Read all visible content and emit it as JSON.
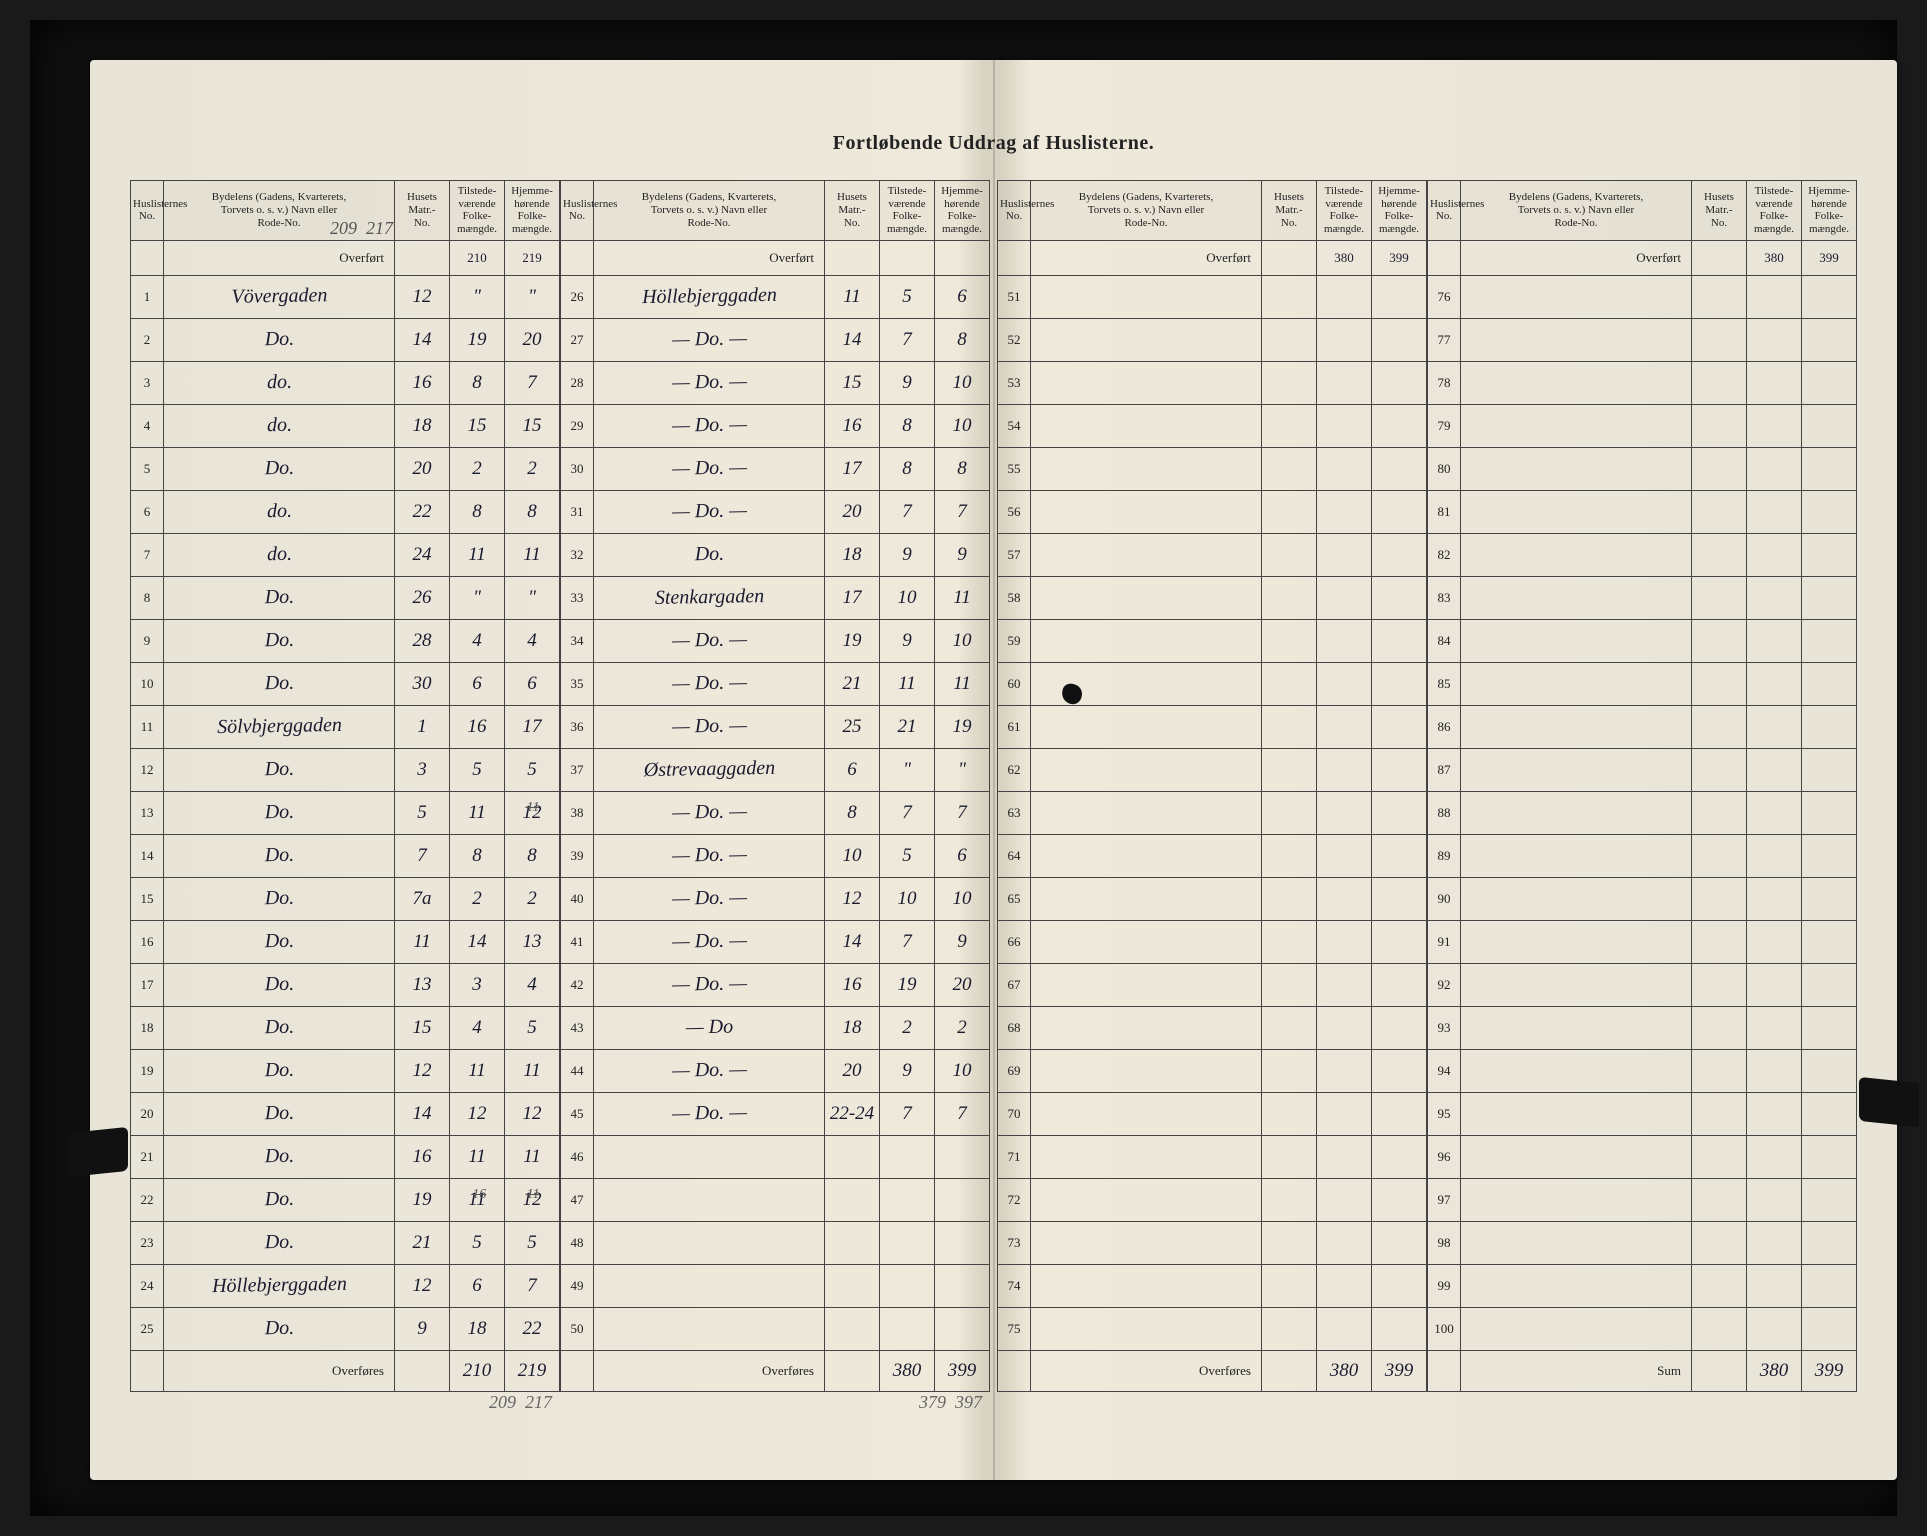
{
  "title": "Fortløbende Uddrag af Huslisterne.",
  "headers": {
    "no": "Huslisternes\nNo.",
    "name": "Bydelens (Gadens, Kvarterets,\nTorvets o. s. v.) Navn eller\nRode-No.",
    "matr": "Husets\nMatr.-\nNo.",
    "pop1": "Tilstede-\nværende\nFolke-\nmængde.",
    "pop2": "Hjemme-\nhørende\nFolke-\nmængde.",
    "overfort": "Overført",
    "overfores": "Overføres",
    "sum": "Sum"
  },
  "blocks": [
    {
      "carry_in": [
        "",
        "210",
        "219"
      ],
      "rows": [
        {
          "n": "1",
          "name": "Vövergaden",
          "m": "12",
          "a": "\"",
          "b": "\""
        },
        {
          "n": "2",
          "name": "Do.",
          "m": "14",
          "a": "19",
          "b": "20"
        },
        {
          "n": "3",
          "name": "do.",
          "m": "16",
          "a": "8",
          "b": "7"
        },
        {
          "n": "4",
          "name": "do.",
          "m": "18",
          "a": "15",
          "b": "15"
        },
        {
          "n": "5",
          "name": "Do.",
          "m": "20",
          "a": "2",
          "b": "2"
        },
        {
          "n": "6",
          "name": "do.",
          "m": "22",
          "a": "8",
          "b": "8"
        },
        {
          "n": "7",
          "name": "do.",
          "m": "24",
          "a": "11",
          "b": "11"
        },
        {
          "n": "8",
          "name": "Do.",
          "m": "26",
          "a": "\"",
          "b": "\""
        },
        {
          "n": "9",
          "name": "Do.",
          "m": "28",
          "a": "4",
          "b": "4"
        },
        {
          "n": "10",
          "name": "Do.",
          "m": "30",
          "a": "6",
          "b": "6"
        },
        {
          "n": "11",
          "name": "Sölvbjerggaden",
          "m": "1",
          "a": "16",
          "b": "17"
        },
        {
          "n": "12",
          "name": "Do.",
          "m": "3",
          "a": "5",
          "b": "5"
        },
        {
          "n": "13",
          "name": "Do.",
          "m": "5",
          "a": "11",
          "b": "12",
          "b_old": "11"
        },
        {
          "n": "14",
          "name": "Do.",
          "m": "7",
          "a": "8",
          "b": "8"
        },
        {
          "n": "15",
          "name": "Do.",
          "m": "7a",
          "a": "2",
          "b": "2"
        },
        {
          "n": "16",
          "name": "Do.",
          "m": "11",
          "a": "14",
          "b": "13"
        },
        {
          "n": "17",
          "name": "Do.",
          "m": "13",
          "a": "3",
          "b": "4"
        },
        {
          "n": "18",
          "name": "Do.",
          "m": "15",
          "a": "4",
          "b": "5"
        },
        {
          "n": "19",
          "name": "Do.",
          "m": "12",
          "a": "11",
          "b": "11"
        },
        {
          "n": "20",
          "name": "Do.",
          "m": "14",
          "a": "12",
          "b": "12"
        },
        {
          "n": "21",
          "name": "Do.",
          "m": "16",
          "a": "11",
          "b": "11"
        },
        {
          "n": "22",
          "name": "Do.",
          "m": "19",
          "a": "11",
          "b": "12",
          "a_old": "16",
          "b_old": "11"
        },
        {
          "n": "23",
          "name": "Do.",
          "m": "21",
          "a": "5",
          "b": "5"
        },
        {
          "n": "24",
          "name": "Höllebjerggaden",
          "m": "12",
          "a": "6",
          "b": "7"
        },
        {
          "n": "25",
          "name": "Do.",
          "m": "9",
          "a": "18",
          "b": "22"
        }
      ],
      "carry_out": [
        "210",
        "219"
      ],
      "carry_out_below": [
        "209",
        "217"
      ]
    },
    {
      "carry_in": [
        "",
        "",
        ""
      ],
      "rows": [
        {
          "n": "26",
          "name": "Höllebjerggaden",
          "m": "11",
          "a": "5",
          "b": "6"
        },
        {
          "n": "27",
          "name": "— Do. —",
          "m": "14",
          "a": "7",
          "b": "8"
        },
        {
          "n": "28",
          "name": "— Do. —",
          "m": "15",
          "a": "9",
          "b": "10"
        },
        {
          "n": "29",
          "name": "— Do. —",
          "m": "16",
          "a": "8",
          "b": "10"
        },
        {
          "n": "30",
          "name": "— Do. —",
          "m": "17",
          "a": "8",
          "b": "8"
        },
        {
          "n": "31",
          "name": "— Do. —",
          "m": "20",
          "a": "7",
          "b": "7"
        },
        {
          "n": "32",
          "name": "Do.",
          "m": "18",
          "a": "9",
          "b": "9"
        },
        {
          "n": "33",
          "name": "Stenkargaden",
          "m": "17",
          "a": "10",
          "b": "11"
        },
        {
          "n": "34",
          "name": "— Do. —",
          "m": "19",
          "a": "9",
          "b": "10"
        },
        {
          "n": "35",
          "name": "— Do. —",
          "m": "21",
          "a": "11",
          "b": "11"
        },
        {
          "n": "36",
          "name": "— Do. —",
          "m": "25",
          "a": "21",
          "b": "19"
        },
        {
          "n": "37",
          "name": "Østrevaaggaden",
          "m": "6",
          "a": "\"",
          "b": "\""
        },
        {
          "n": "38",
          "name": "— Do. —",
          "m": "8",
          "a": "7",
          "b": "7"
        },
        {
          "n": "39",
          "name": "— Do. —",
          "m": "10",
          "a": "5",
          "b": "6"
        },
        {
          "n": "40",
          "name": "— Do. —",
          "m": "12",
          "a": "10",
          "b": "10"
        },
        {
          "n": "41",
          "name": "— Do. —",
          "m": "14",
          "a": "7",
          "b": "9"
        },
        {
          "n": "42",
          "name": "— Do. —",
          "m": "16",
          "a": "19",
          "b": "20"
        },
        {
          "n": "43",
          "name": "— Do",
          "m": "18",
          "a": "2",
          "b": "2"
        },
        {
          "n": "44",
          "name": "— Do. —",
          "m": "20",
          "a": "9",
          "b": "10"
        },
        {
          "n": "45",
          "name": "— Do. —",
          "m": "22-24",
          "a": "7",
          "b": "7"
        },
        {
          "n": "46",
          "name": "",
          "m": "",
          "a": "",
          "b": ""
        },
        {
          "n": "47",
          "name": "",
          "m": "",
          "a": "",
          "b": ""
        },
        {
          "n": "48",
          "name": "",
          "m": "",
          "a": "",
          "b": ""
        },
        {
          "n": "49",
          "name": "",
          "m": "",
          "a": "",
          "b": ""
        },
        {
          "n": "50",
          "name": "",
          "m": "",
          "a": "",
          "b": ""
        }
      ],
      "carry_out": [
        "380",
        "399"
      ],
      "carry_out_below": [
        "379",
        "397"
      ]
    },
    {
      "carry_in": [
        "",
        "380",
        "399"
      ],
      "rows": [
        {
          "n": "51"
        },
        {
          "n": "52"
        },
        {
          "n": "53"
        },
        {
          "n": "54"
        },
        {
          "n": "55"
        },
        {
          "n": "56"
        },
        {
          "n": "57"
        },
        {
          "n": "58"
        },
        {
          "n": "59"
        },
        {
          "n": "60"
        },
        {
          "n": "61"
        },
        {
          "n": "62"
        },
        {
          "n": "63"
        },
        {
          "n": "64"
        },
        {
          "n": "65"
        },
        {
          "n": "66"
        },
        {
          "n": "67"
        },
        {
          "n": "68"
        },
        {
          "n": "69"
        },
        {
          "n": "70"
        },
        {
          "n": "71"
        },
        {
          "n": "72"
        },
        {
          "n": "73"
        },
        {
          "n": "74"
        },
        {
          "n": "75"
        }
      ],
      "carry_out": [
        "380",
        "399"
      ]
    },
    {
      "carry_in": [
        "",
        "380",
        "399"
      ],
      "rows": [
        {
          "n": "76"
        },
        {
          "n": "77"
        },
        {
          "n": "78"
        },
        {
          "n": "79"
        },
        {
          "n": "80"
        },
        {
          "n": "81"
        },
        {
          "n": "82"
        },
        {
          "n": "83"
        },
        {
          "n": "84"
        },
        {
          "n": "85"
        },
        {
          "n": "86"
        },
        {
          "n": "87"
        },
        {
          "n": "88"
        },
        {
          "n": "89"
        },
        {
          "n": "90"
        },
        {
          "n": "91"
        },
        {
          "n": "92"
        },
        {
          "n": "93"
        },
        {
          "n": "94"
        },
        {
          "n": "95"
        },
        {
          "n": "96"
        },
        {
          "n": "97"
        },
        {
          "n": "98"
        },
        {
          "n": "99"
        },
        {
          "n": "100"
        }
      ],
      "carry_out": [
        "380",
        "399"
      ],
      "is_sum": true
    }
  ]
}
